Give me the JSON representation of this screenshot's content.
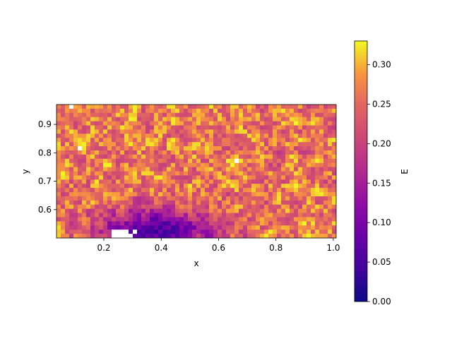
{
  "chart_data": {
    "type": "heatmap",
    "title": "",
    "xlabel": "x",
    "ylabel": "y",
    "xlim": [
      0.035,
      1.01
    ],
    "ylim": [
      0.5,
      0.97
    ],
    "x_ticks": [
      0.2,
      0.4,
      0.6,
      0.8,
      1.0
    ],
    "x_tick_labels": [
      "0.2",
      "0.4",
      "0.6",
      "0.8",
      "1.0"
    ],
    "y_ticks": [
      0.6,
      0.7,
      0.8,
      0.9
    ],
    "y_tick_labels": [
      "0.6",
      "0.7",
      "0.8",
      "0.9"
    ],
    "colormap": "plasma",
    "colorbar": {
      "label": "E",
      "range": [
        0.0,
        0.33
      ],
      "ticks": [
        0.0,
        0.05,
        0.1,
        0.15,
        0.2,
        0.25,
        0.3
      ],
      "tick_labels": [
        "0.00",
        "0.05",
        "0.10",
        "0.15",
        "0.20",
        "0.25",
        "0.30"
      ]
    },
    "field": {
      "description_of_pattern": "noisy field, mostly 0.22–0.33 (orange/yellow) with many white gaps where values exceed colorbar max; low values (0.05–0.15, purple) concentrated near the bottom around x 0.2–0.55, y 0.5–0.6",
      "background_level": 0.26,
      "low_region": {
        "x_center": 0.38,
        "y_center": 0.53,
        "value": 0.06
      },
      "missing_region": {
        "x_range": [
          0.22,
          0.32
        ],
        "y_range": [
          0.5,
          0.525
        ]
      }
    }
  }
}
